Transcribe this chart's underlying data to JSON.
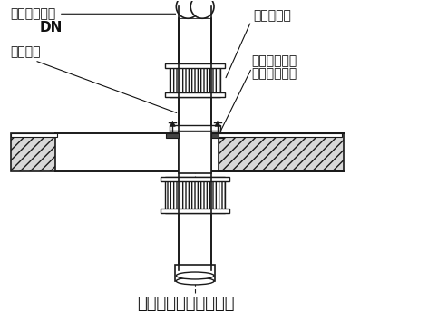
{
  "title": "卡箍式承重短管示意图",
  "label_top_left1": "铸铁排水立管",
  "label_top_left2": "DN",
  "label_mid_left": "承重短管",
  "label_top_right": "不锈钢卡箍",
  "label_bot_right1": "承重短管支架",
  "label_bot_right2": "固定在楼板上",
  "bg_color": "#ffffff",
  "line_color": "#1a1a1a",
  "fig_width": 4.72,
  "fig_height": 3.54,
  "dpi": 100
}
